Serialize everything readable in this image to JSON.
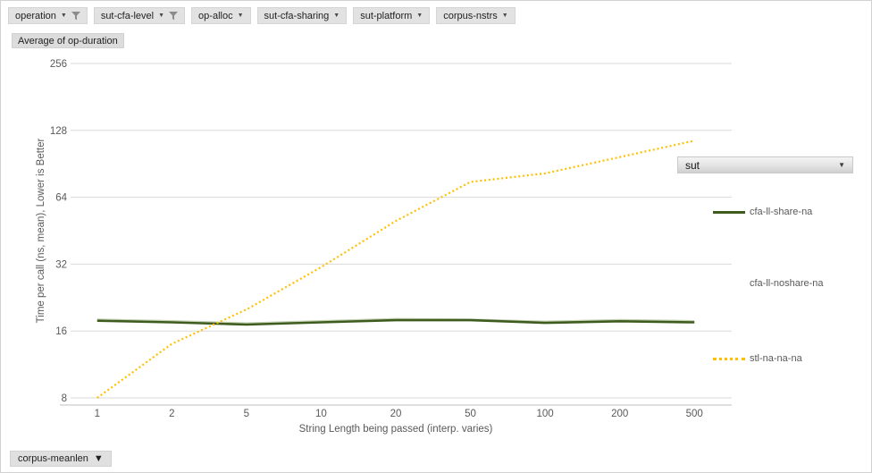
{
  "filters": {
    "buttons": [
      {
        "label": "operation",
        "filtered": true
      },
      {
        "label": "sut-cfa-level",
        "filtered": true
      },
      {
        "label": "op-alloc",
        "filtered": false
      },
      {
        "label": "sut-cfa-sharing",
        "filtered": false
      },
      {
        "label": "sut-platform",
        "filtered": false
      },
      {
        "label": "corpus-nstrs",
        "filtered": false
      }
    ],
    "value_field_label": "Average of op-duration",
    "right_field_label": "sut",
    "bottom_field_label": "corpus-meanlen"
  },
  "legend": {
    "position": "right",
    "items": [
      {
        "label": "cfa-ll-share-na",
        "swatch": "solid",
        "color": "#3f5c1f"
      },
      {
        "label": "cfa-ll-noshare-na",
        "swatch": "none",
        "color": "#c3d0b4"
      },
      {
        "label": "stl-na-na-na",
        "swatch": "dotted",
        "color": "#ffc000"
      }
    ]
  },
  "chart_data": {
    "type": "line",
    "title": "",
    "xlabel": "String Length being passed (interp. varies)",
    "ylabel": "Time per call (ns, mean), Lower is Better",
    "x_axis_type": "category",
    "categories": [
      "1",
      "2",
      "5",
      "10",
      "20",
      "50",
      "100",
      "200",
      "500"
    ],
    "series": [
      {
        "name": "cfa-ll-noshare-na",
        "color": "#c3d0b4",
        "style": "solid",
        "values": [
          18.0,
          17.7,
          17.3,
          17.7,
          18.1,
          18.0,
          17.6,
          17.9,
          17.7
        ]
      },
      {
        "name": "cfa-ll-share-na",
        "color": "#3f5c1f",
        "style": "solid",
        "values": [
          17.8,
          17.5,
          17.1,
          17.5,
          17.9,
          17.9,
          17.4,
          17.7,
          17.5
        ]
      },
      {
        "name": "stl-na-na-na",
        "color": "#ffc000",
        "style": "dotted",
        "values": [
          8,
          14,
          20,
          31,
          50,
          75,
          82,
          97,
          115
        ]
      }
    ],
    "y_scale": "log2",
    "y_ticks": [
      256,
      128,
      64,
      32,
      16,
      8
    ],
    "ylim": [
      7.4,
      280
    ],
    "grid": "horizontal",
    "legend_position": "right",
    "colors": {
      "gridline": "#d9d9d9",
      "axis_line": "#bfbfbf",
      "tick_text": "#595959"
    }
  }
}
